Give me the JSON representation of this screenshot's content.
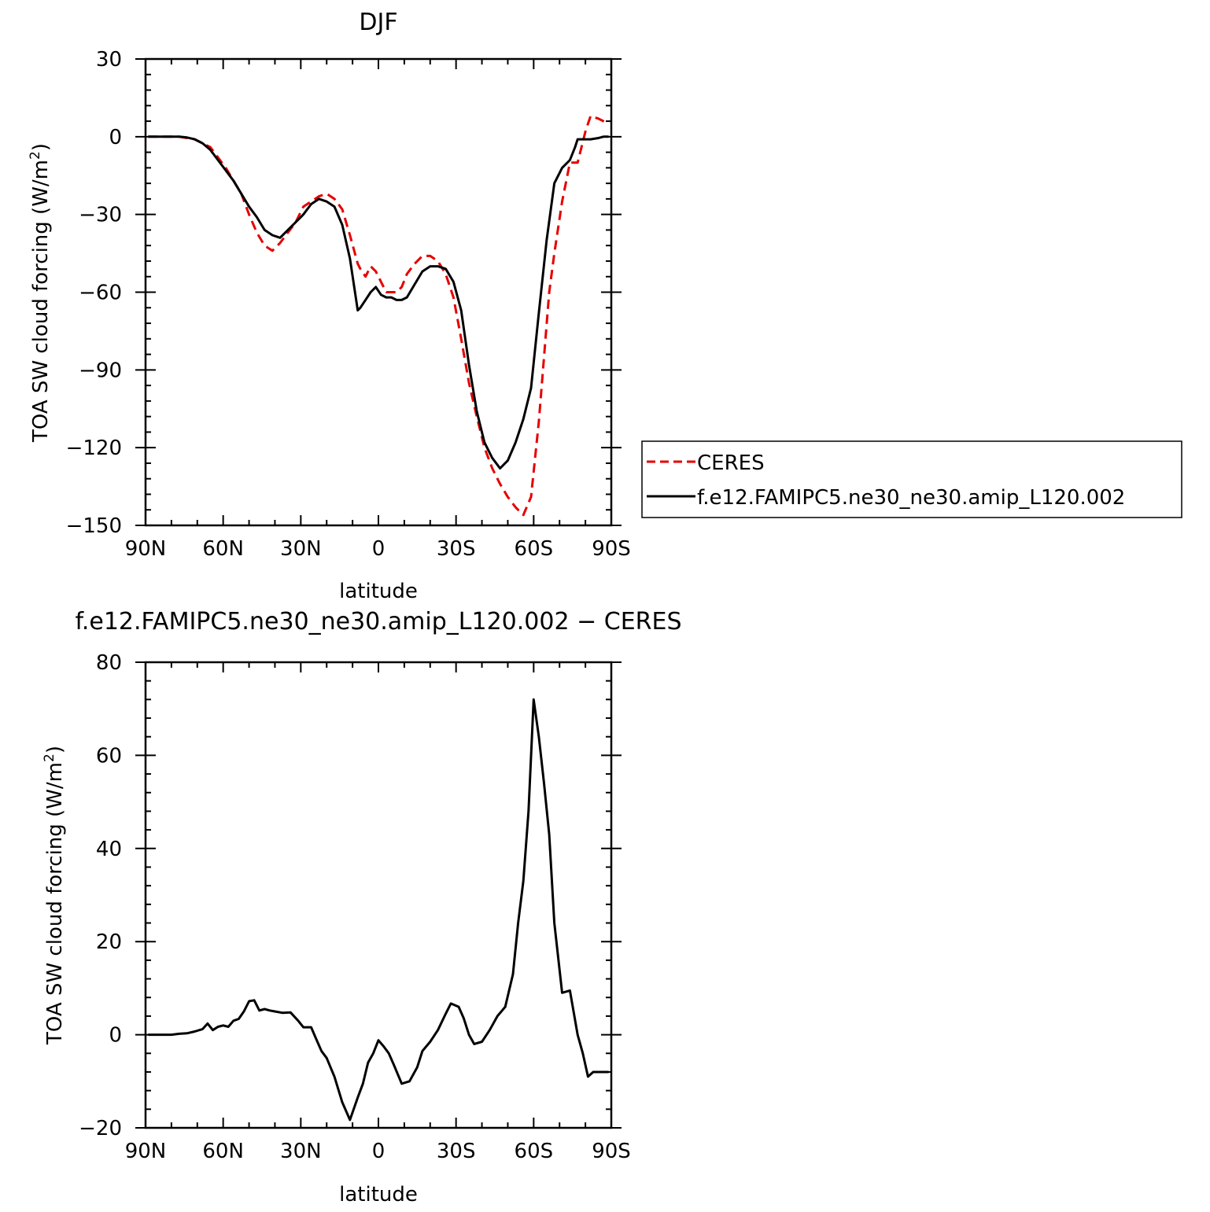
{
  "colors": {
    "ceres": "#e60000",
    "model": "#000000",
    "axis": "#000000",
    "background": "#ffffff"
  },
  "chart_data": [
    {
      "type": "line",
      "title": "DJF",
      "xlabel": "latitude",
      "ylabel": "TOA SW cloud forcing (W/m²)",
      "xlim": [
        90,
        -90
      ],
      "ylim": [
        -150,
        30
      ],
      "xticks": [
        90,
        60,
        30,
        0,
        -30,
        -60,
        -90
      ],
      "xtick_labels": [
        "90N",
        "60N",
        "30N",
        "0",
        "30S",
        "60S",
        "90S"
      ],
      "yticks": [
        30,
        0,
        -30,
        -60,
        -90,
        -120,
        -150
      ],
      "ytick_labels": [
        "30",
        "0",
        "−30",
        "−60",
        "−90",
        "−120",
        "−150"
      ],
      "legend": {
        "placement": "right"
      },
      "series": [
        {
          "name": "CERES",
          "style": "dashed",
          "color": "#e60000",
          "x": [
            89,
            86,
            83,
            80,
            77,
            74,
            71,
            68,
            65,
            62,
            59,
            56,
            53,
            50,
            47,
            44,
            41,
            38,
            35,
            32,
            29,
            26,
            23,
            20,
            17,
            14,
            11,
            8,
            7,
            5,
            3,
            1,
            -1,
            -3,
            -5,
            -7,
            -9,
            -11,
            -14,
            -17,
            -20,
            -23,
            -26,
            -29,
            -32,
            -35,
            -38,
            -41,
            -44,
            -47,
            -50,
            -53,
            -56,
            -59,
            -62,
            -64,
            -66,
            -68,
            -71,
            -74,
            -77,
            -80,
            -82,
            -85,
            -87,
            -89
          ],
          "y": [
            0,
            0,
            0,
            0,
            0,
            -0.5,
            -1,
            -2.5,
            -4,
            -8,
            -12,
            -17,
            -22,
            -30,
            -37,
            -42,
            -44,
            -41,
            -37,
            -33,
            -27,
            -25,
            -23,
            -22,
            -24,
            -28,
            -38,
            -49,
            -51,
            -54,
            -50,
            -52,
            -56,
            -60,
            -60,
            -60,
            -58,
            -53,
            -49,
            -46,
            -46,
            -48,
            -53,
            -62,
            -78,
            -95,
            -108,
            -120,
            -128,
            -134,
            -139,
            -143,
            -146,
            -139,
            -110,
            -85,
            -60,
            -45,
            -25,
            -10,
            -10,
            2,
            8,
            7,
            6,
            5
          ]
        },
        {
          "name": "f.e12.FAMIPC5.ne30_ne30.amip_L120.002",
          "style": "solid",
          "color": "#000000",
          "x": [
            89,
            86,
            83,
            80,
            77,
            74,
            71,
            68,
            65,
            62,
            59,
            56,
            53,
            50,
            47,
            44,
            41,
            38,
            35,
            32,
            29,
            26,
            23,
            20,
            17,
            14,
            11,
            8,
            7,
            5,
            3,
            1,
            -1,
            -3,
            -5,
            -7,
            -9,
            -11,
            -14,
            -17,
            -20,
            -23,
            -26,
            -29,
            -32,
            -35,
            -38,
            -41,
            -44,
            -47,
            -50,
            -53,
            -56,
            -59,
            -62,
            -65,
            -68,
            -71,
            -74,
            -76,
            -77,
            -79,
            -82,
            -85,
            -87,
            -89
          ],
          "y": [
            0,
            0,
            0,
            0,
            0,
            -0.3,
            -1,
            -2.5,
            -5,
            -9,
            -13,
            -17,
            -22,
            -27,
            -31,
            -36,
            -38,
            -39,
            -36,
            -33,
            -30,
            -26,
            -24,
            -25,
            -27,
            -34,
            -47,
            -67,
            -66,
            -63,
            -60,
            -58,
            -61,
            -62,
            -62,
            -63,
            -63,
            -62,
            -57,
            -52,
            -50,
            -50,
            -51,
            -56,
            -67,
            -88,
            -106,
            -118,
            -124,
            -128,
            -125,
            -118,
            -109,
            -97,
            -68,
            -40,
            -18,
            -12,
            -9,
            -4,
            -1,
            -1,
            -1,
            -0.5,
            0,
            0
          ]
        }
      ]
    },
    {
      "type": "line",
      "title": "f.e12.FAMIPC5.ne30_ne30.amip_L120.002  −  CERES",
      "xlabel": "latitude",
      "ylabel": "TOA SW cloud forcing (W/m²)",
      "xlim": [
        90,
        -90
      ],
      "ylim": [
        -20,
        80
      ],
      "xticks": [
        90,
        60,
        30,
        0,
        -30,
        -60,
        -90
      ],
      "xtick_labels": [
        "90N",
        "60N",
        "30N",
        "0",
        "30S",
        "60S",
        "90S"
      ],
      "yticks": [
        80,
        60,
        40,
        20,
        0,
        -20
      ],
      "ytick_labels": [
        "80",
        "60",
        "40",
        "20",
        "0",
        "−20"
      ],
      "series": [
        {
          "style": "solid",
          "color": "#000000",
          "x": [
            89,
            86,
            83,
            80,
            77,
            74,
            71,
            68,
            66,
            64,
            62,
            60,
            58,
            56,
            54,
            52,
            50,
            48,
            46,
            44,
            42,
            40,
            37,
            34,
            31,
            29,
            26,
            24,
            22,
            20,
            17,
            14,
            11,
            8,
            6,
            4,
            2,
            0,
            -2,
            -4,
            -6,
            -9,
            -12,
            -15,
            -17,
            -20,
            -23,
            -26,
            -28,
            -31,
            -33,
            -35,
            -37,
            -40,
            -43,
            -46,
            -49,
            -52,
            -54,
            -56,
            -58,
            -60,
            -62,
            -64,
            -66,
            -68,
            -71,
            -74,
            -77,
            -79,
            -81,
            -83,
            -85,
            -87,
            -89
          ],
          "y": [
            0,
            0,
            0,
            0,
            0.2,
            0.3,
            0.7,
            1.2,
            2.4,
            1,
            1.7,
            2,
            1.7,
            3,
            3.4,
            5,
            7.2,
            7.4,
            5.2,
            5.5,
            5.2,
            5,
            4.7,
            4.8,
            3,
            1.6,
            1.6,
            -1,
            -3.5,
            -5,
            -9,
            -14.5,
            -18.3,
            -13.5,
            -10.5,
            -6,
            -4,
            -1.2,
            -2.5,
            -4,
            -6.5,
            -10.5,
            -10,
            -7,
            -3.5,
            -1.5,
            1,
            4.5,
            6.7,
            6,
            3.5,
            0,
            -2,
            -1.5,
            1,
            4,
            6,
            13,
            24,
            33,
            48,
            72,
            64,
            54,
            43,
            24,
            9,
            9.5,
            0,
            -4,
            -9,
            -8,
            -8,
            -8,
            -8
          ]
        }
      ]
    }
  ]
}
